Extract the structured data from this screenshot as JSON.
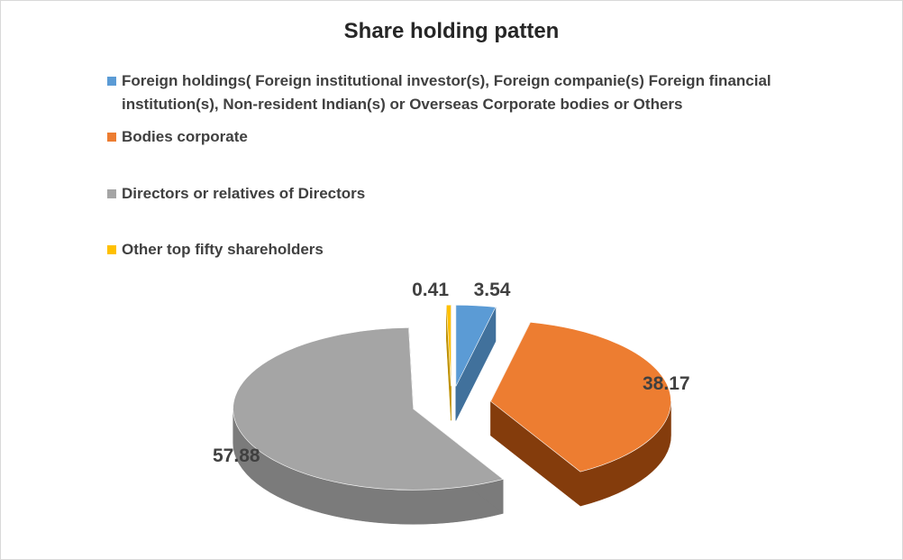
{
  "chart_data": {
    "type": "pie",
    "title": "Share holding patten",
    "legend_position": "top",
    "three_d": true,
    "exploded": true,
    "slices": [
      {
        "label": "Foreign holdings( Foreign institutional investor(s), Foreign companie(s) Foreign financial institution(s), Non-resident Indian(s) or Overseas Corporate bodies or Others",
        "value": 3.54,
        "value_label": "3.54",
        "color": "#5b9bd5",
        "side_color": "#41719c"
      },
      {
        "label": "Bodies corporate",
        "value": 38.17,
        "value_label": "38.17",
        "color": "#ed7d31",
        "side_color": "#843c0c"
      },
      {
        "label": "Directors or relatives of Directors",
        "value": 57.88,
        "value_label": "57.88",
        "color": "#a5a5a5",
        "side_color": "#7b7b7b"
      },
      {
        "label": "Other top fifty shareholders",
        "value": 0.41,
        "value_label": "0.41",
        "color": "#ffc000",
        "side_color": "#bf9000"
      }
    ]
  }
}
